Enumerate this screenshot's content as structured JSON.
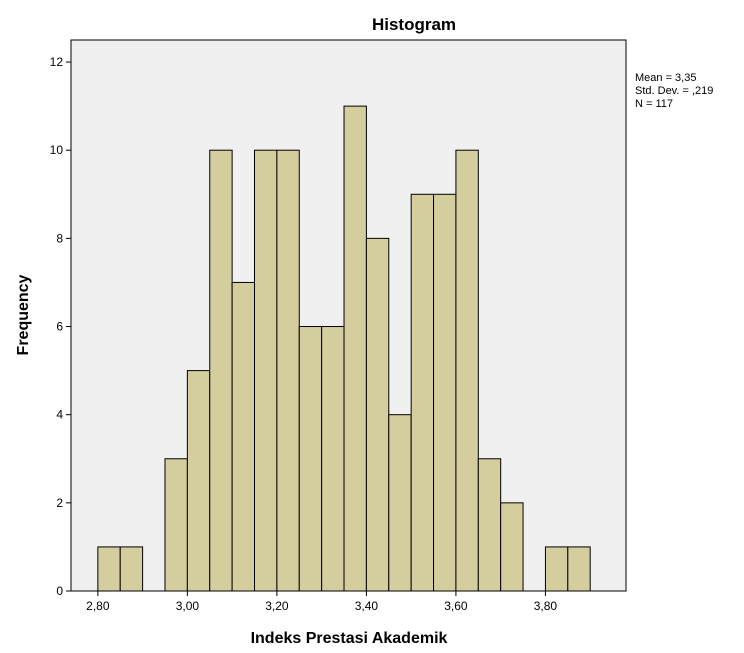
{
  "chart_data": {
    "type": "bar",
    "title": "Histogram",
    "xlabel": "Indeks Prestasi Akademik",
    "ylabel": "Frequency",
    "bin_width": 0.05,
    "bins": [
      {
        "start": 2.8,
        "end": 2.85,
        "count": 1
      },
      {
        "start": 2.85,
        "end": 2.9,
        "count": 1
      },
      {
        "start": 2.9,
        "end": 2.95,
        "count": 0
      },
      {
        "start": 2.95,
        "end": 3.0,
        "count": 3
      },
      {
        "start": 3.0,
        "end": 3.05,
        "count": 5
      },
      {
        "start": 3.05,
        "end": 3.1,
        "count": 10
      },
      {
        "start": 3.1,
        "end": 3.15,
        "count": 7
      },
      {
        "start": 3.15,
        "end": 3.2,
        "count": 10
      },
      {
        "start": 3.2,
        "end": 3.25,
        "count": 10
      },
      {
        "start": 3.25,
        "end": 3.3,
        "count": 6
      },
      {
        "start": 3.3,
        "end": 3.35,
        "count": 6
      },
      {
        "start": 3.35,
        "end": 3.4,
        "count": 11
      },
      {
        "start": 3.4,
        "end": 3.45,
        "count": 8
      },
      {
        "start": 3.45,
        "end": 3.5,
        "count": 4
      },
      {
        "start": 3.5,
        "end": 3.55,
        "count": 9
      },
      {
        "start": 3.55,
        "end": 3.6,
        "count": 9
      },
      {
        "start": 3.6,
        "end": 3.65,
        "count": 10
      },
      {
        "start": 3.65,
        "end": 3.7,
        "count": 3
      },
      {
        "start": 3.7,
        "end": 3.75,
        "count": 2
      },
      {
        "start": 3.75,
        "end": 3.8,
        "count": 0
      },
      {
        "start": 3.8,
        "end": 3.85,
        "count": 1
      },
      {
        "start": 3.85,
        "end": 3.9,
        "count": 1
      }
    ],
    "xlim": [
      2.74,
      3.98
    ],
    "ylim": [
      0,
      12.5
    ],
    "x_ticks": [
      2.8,
      3.0,
      3.2,
      3.4,
      3.6,
      3.8
    ],
    "x_tick_labels": [
      "2,80",
      "3,00",
      "3,20",
      "3,40",
      "3,60",
      "3,80"
    ],
    "y_ticks": [
      0,
      2,
      4,
      6,
      8,
      10,
      12
    ],
    "y_tick_labels": [
      "0",
      "2",
      "4",
      "6",
      "8",
      "10",
      "12"
    ],
    "grid": false,
    "legend": "none",
    "stats": {
      "mean": "Mean = 3,35",
      "std_dev": "Std. Dev. = ,219",
      "n": "N = 117"
    },
    "stats_placement": "top-right",
    "colors": {
      "plot_background": "#f0f0f0",
      "bar_fill": "#d4ce9f",
      "bar_stroke": "#000000",
      "axis": "#000000"
    }
  }
}
